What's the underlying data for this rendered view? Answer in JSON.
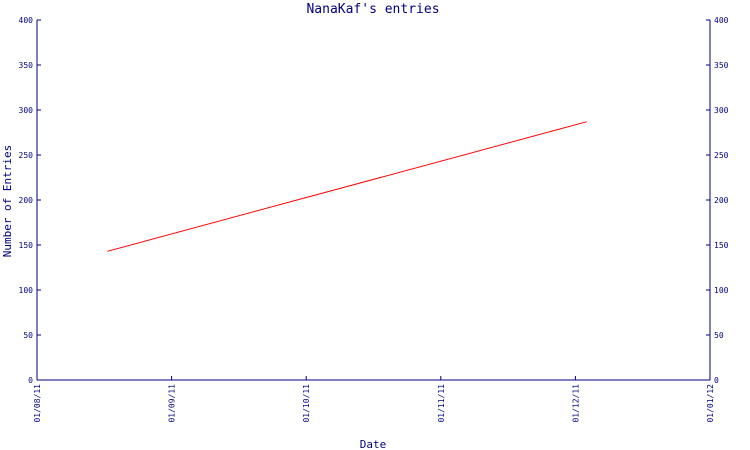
{
  "chart_data": {
    "type": "line",
    "title": "NanaKaf's entries",
    "xlabel": "Date",
    "ylabel": "Number of Entries",
    "x_tick_labels": [
      "01/08/11",
      "01/09/11",
      "01/10/11",
      "01/11/11",
      "01/12/11",
      "01/01/12"
    ],
    "x_range": [
      "2011-08-01",
      "2012-01-01"
    ],
    "ylim": [
      0,
      400
    ],
    "y_ticks": [
      0,
      50,
      100,
      150,
      200,
      250,
      300,
      350,
      400
    ],
    "y_axis_right_mirror": true,
    "grid": false,
    "series": [
      {
        "color": "#ff0000",
        "points": [
          {
            "x": "2011-08-17",
            "y": 143
          },
          {
            "x": "2011-12-04",
            "y": 287
          }
        ]
      }
    ],
    "colors": {
      "axis": "#000080",
      "text": "#000080",
      "line": "#ff0000",
      "background": "#ffffff"
    }
  }
}
